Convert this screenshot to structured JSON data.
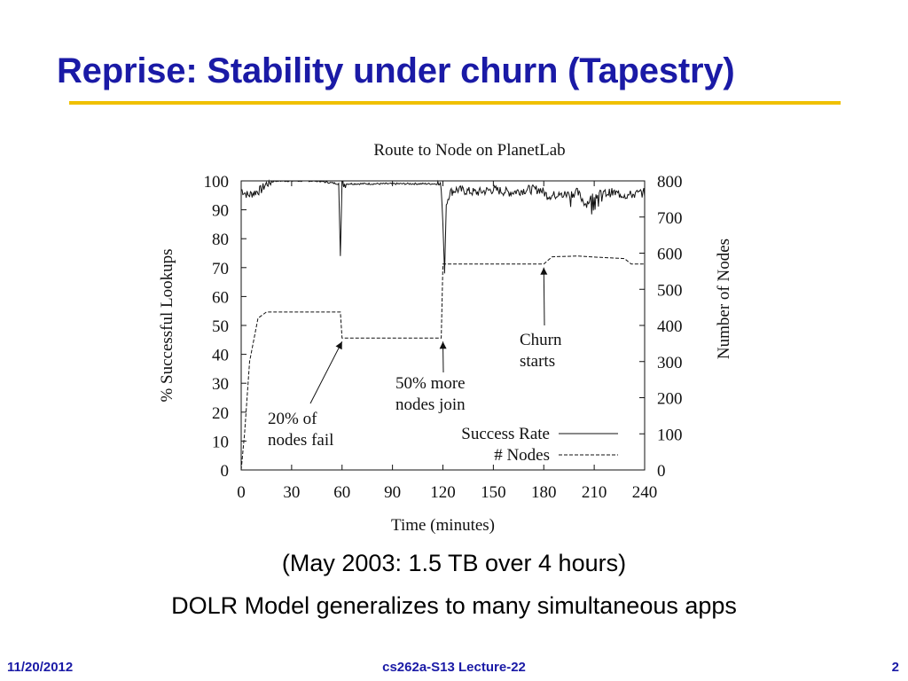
{
  "slide": {
    "title": "Reprise: Stability under churn (Tapestry)",
    "caption_line1": "(May 2003: 1.5 TB over 4 hours)",
    "caption_line2": "DOLR Model generalizes to many simultaneous apps",
    "footer_left": "11/20/2012",
    "footer_center": "cs262a-S13 Lecture-22",
    "footer_right": "2",
    "accent_color": "#1a1aa6",
    "rule_color": "#f0c000"
  },
  "chart_data": {
    "type": "line",
    "title": "Route to Node on PlanetLab",
    "xlabel": "Time (minutes)",
    "ylabel_left": "% Successful Lookups",
    "ylabel_right": "Number of Nodes",
    "xlim": [
      0,
      240
    ],
    "ylim_left": [
      0,
      100
    ],
    "ylim_right": [
      0,
      800
    ],
    "x_ticks": [
      0,
      30,
      60,
      90,
      120,
      150,
      180,
      210,
      240
    ],
    "y_ticks_left": [
      0,
      10,
      20,
      30,
      40,
      50,
      60,
      70,
      80,
      90,
      100
    ],
    "y_ticks_right": [
      0,
      100,
      200,
      300,
      400,
      500,
      600,
      700,
      800
    ],
    "legend": {
      "placement": "bottom-right",
      "entries": [
        {
          "label": "Success Rate",
          "style": "solid"
        },
        {
          "label": "# Nodes",
          "style": "dashed"
        }
      ]
    },
    "series": [
      {
        "name": "Success Rate",
        "axis": "left",
        "style": "solid",
        "x": [
          0,
          4,
          8,
          12,
          15,
          20,
          30,
          45,
          58,
          59,
          60,
          61,
          62,
          75,
          90,
          105,
          117,
          119,
          120,
          121,
          122,
          124,
          128,
          140,
          150,
          160,
          170,
          178,
          182,
          190,
          200,
          205,
          210,
          220,
          230,
          240
        ],
        "y": [
          97,
          95,
          96,
          97,
          99,
          100,
          100,
          100,
          99,
          74,
          99,
          99,
          99,
          99,
          99,
          99,
          99,
          98,
          85,
          68,
          92,
          96,
          97,
          96,
          97,
          96,
          97,
          97,
          95,
          95,
          96,
          92,
          95,
          96,
          95,
          96
        ]
      },
      {
        "name": "# Nodes",
        "axis": "right",
        "style": "dashed",
        "x": [
          0,
          2,
          5,
          10,
          15,
          59,
          60,
          119,
          120,
          180,
          185,
          200,
          215,
          228,
          232,
          240
        ],
        "y": [
          0,
          100,
          300,
          420,
          437,
          437,
          365,
          365,
          570,
          570,
          590,
          592,
          588,
          585,
          570,
          570
        ]
      }
    ],
    "annotations": [
      {
        "lines": [
          "20% of",
          "nodes fail"
        ],
        "arrow_to": {
          "x": 60,
          "y_right": 365
        }
      },
      {
        "lines": [
          "50% more",
          "nodes join"
        ],
        "arrow_to": {
          "x": 120,
          "y_right": 365
        }
      },
      {
        "lines": [
          "Churn",
          "starts"
        ],
        "arrow_to": {
          "x": 180,
          "y_right": 570
        }
      }
    ]
  }
}
